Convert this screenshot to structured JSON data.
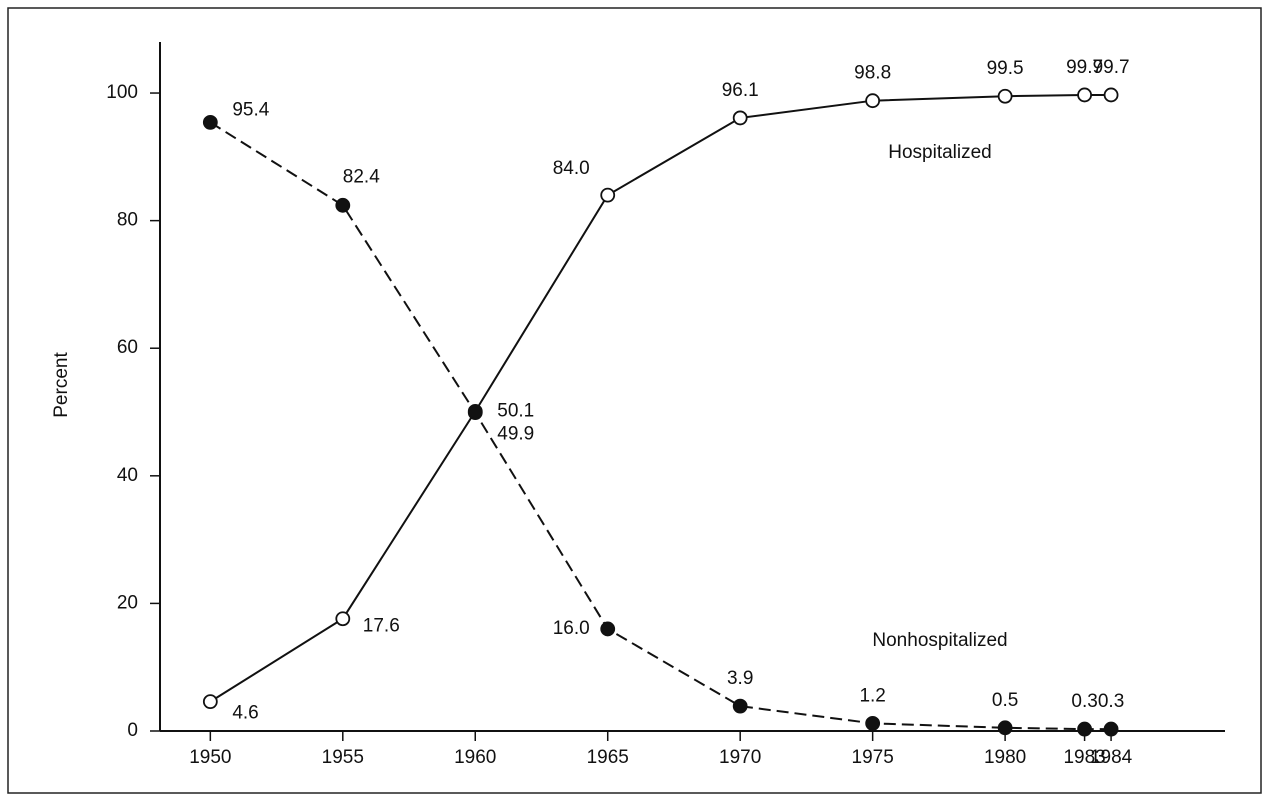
{
  "chart_data": {
    "type": "line",
    "y_label": "Percent",
    "x": [
      1950,
      1955,
      1960,
      1965,
      1970,
      1975,
      1980,
      1983,
      1984
    ],
    "xlim": [
      1948.1,
      1988.3
    ],
    "xticks": [
      1950,
      1955,
      1960,
      1965,
      1970,
      1975,
      1980,
      1983,
      1984
    ],
    "ylim": [
      0,
      108
    ],
    "yticks": [
      0,
      20,
      40,
      60,
      80,
      100
    ],
    "series": [
      {
        "name": "Hospitalized",
        "color": "#111111",
        "line_style": "solid",
        "marker": "open",
        "values": [
          4.6,
          17.6,
          50.1,
          84.0,
          96.1,
          98.8,
          99.5,
          99.7,
          99.7
        ],
        "value_labels": [
          "4.6",
          "17.6",
          "50.1",
          "84.0",
          "96.1",
          "98.8",
          "99.5",
          "99.7",
          "99.7"
        ]
      },
      {
        "name": "Nonhospitalized",
        "color": "#111111",
        "line_style": "dashed",
        "marker": "filled",
        "values": [
          95.4,
          82.4,
          49.9,
          16.0,
          3.9,
          1.2,
          0.5,
          0.3,
          0.3
        ],
        "value_labels": [
          "95.4",
          "82.4",
          "49.9",
          "16.0",
          "3.9",
          "1.2",
          "0.5",
          "0.3",
          "0.3"
        ]
      }
    ]
  }
}
